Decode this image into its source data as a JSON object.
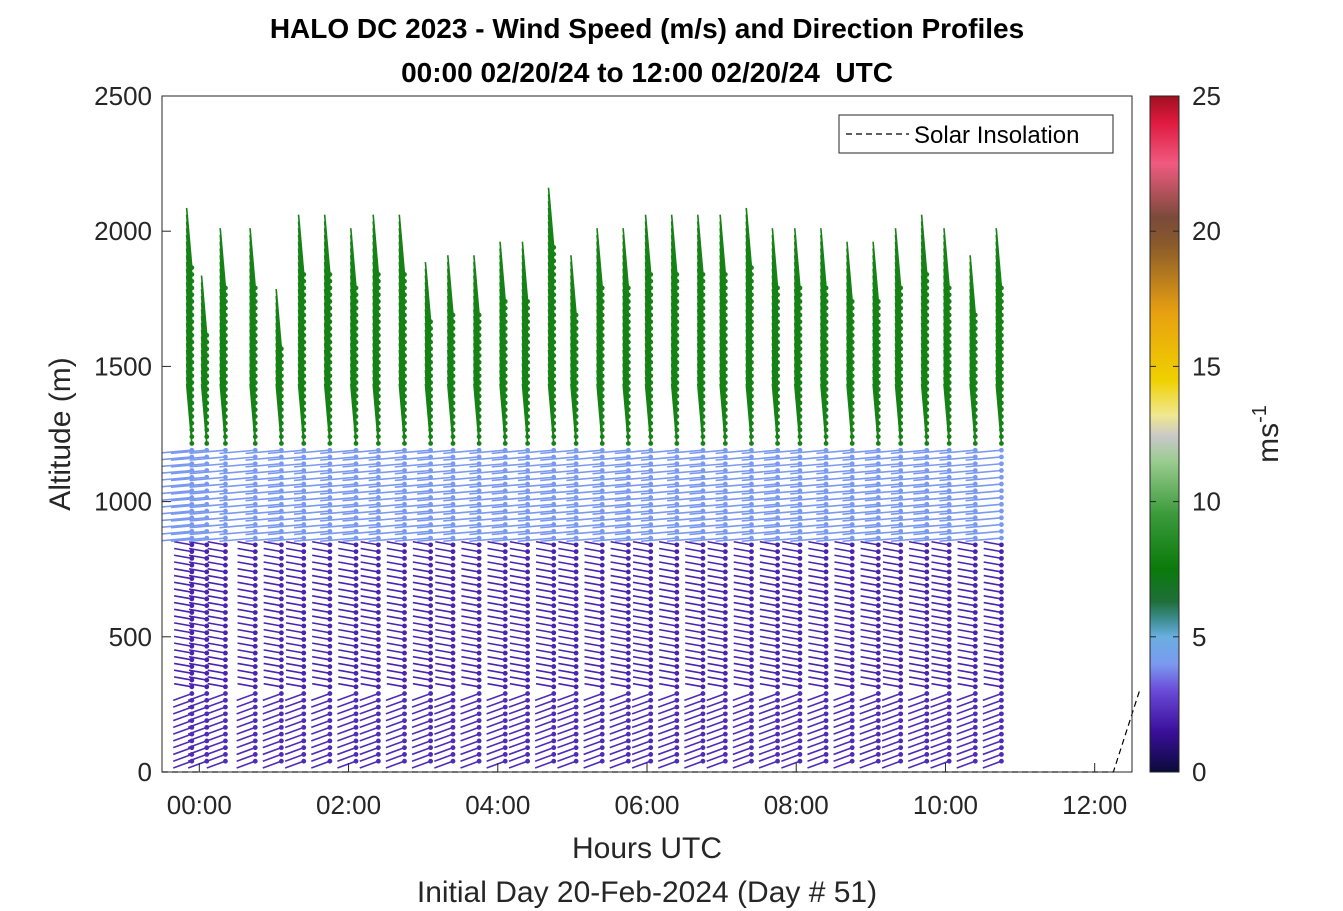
{
  "chart_data": {
    "type": "quiver",
    "title": "HALO DC 2023 - Wind Speed (m/s) and Direction Profiles",
    "subtitle": "00:00 02/20/24 to 12:00 02/20/24  UTC",
    "xlabel": "Hours UTC",
    "xlabel2": "Initial Day 20-Feb-2024 (Day # 51)",
    "ylabel": "Altitude (m)",
    "xlim": [
      -0.5,
      12.5
    ],
    "ylim": [
      0,
      2500
    ],
    "xticks": [
      0,
      2,
      4,
      6,
      8,
      10,
      12
    ],
    "xtick_labels": [
      "00:00",
      "02:00",
      "04:00",
      "06:00",
      "08:00",
      "10:00",
      "12:00"
    ],
    "yticks": [
      0,
      500,
      1000,
      1500,
      2000,
      2500
    ],
    "ytick_labels": [
      "0",
      "500",
      "1000",
      "1500",
      "2000",
      "2500"
    ],
    "colorbar": {
      "label": "ms",
      "label_exponent": "-1",
      "range": [
        0,
        25
      ],
      "ticks": [
        0,
        5,
        10,
        15,
        20,
        25
      ],
      "tick_labels": [
        "0",
        "5",
        "10",
        "15",
        "20",
        "25"
      ],
      "stops": [
        {
          "v": 0,
          "color": "#0a0a3a"
        },
        {
          "v": 1.5,
          "color": "#3a0f9a"
        },
        {
          "v": 3,
          "color": "#6a4ad8"
        },
        {
          "v": 4,
          "color": "#7a9af0"
        },
        {
          "v": 5,
          "color": "#6aaee0"
        },
        {
          "v": 5.7,
          "color": "#3a8a8a"
        },
        {
          "v": 6.3,
          "color": "#1f6f3a"
        },
        {
          "v": 7.5,
          "color": "#0a7a0a"
        },
        {
          "v": 9.5,
          "color": "#3a9a3a"
        },
        {
          "v": 11.5,
          "color": "#9acc90"
        },
        {
          "v": 12.4,
          "color": "#c8c8c8"
        },
        {
          "v": 13.2,
          "color": "#f0e890"
        },
        {
          "v": 14.5,
          "color": "#f0d000"
        },
        {
          "v": 17,
          "color": "#e8a010"
        },
        {
          "v": 19.5,
          "color": "#8a5a2a"
        },
        {
          "v": 20.5,
          "color": "#7a4a3a"
        },
        {
          "v": 22.5,
          "color": "#f05a80"
        },
        {
          "v": 24,
          "color": "#e01a40"
        },
        {
          "v": 25,
          "color": "#a01020"
        }
      ]
    },
    "legend": {
      "entries": [
        "Solar Insolation"
      ],
      "position": "top-right",
      "style": "dashed"
    },
    "series": [
      {
        "name": "Solar Insolation",
        "type": "line",
        "x": [
          -0.5,
          12.25,
          12.6
        ],
        "y": [
          0,
          0,
          300
        ]
      },
      {
        "type": "wind-profiles",
        "times_h": [
          -0.1,
          0.1,
          0.35,
          0.75,
          1.1,
          1.4,
          1.75,
          2.1,
          2.4,
          2.75,
          3.1,
          3.4,
          3.75,
          4.1,
          4.4,
          4.75,
          5.05,
          5.4,
          5.75,
          6.05,
          6.4,
          6.75,
          7.05,
          7.4,
          7.75,
          8.05,
          8.4,
          8.75,
          9.1,
          9.4,
          9.75,
          10.05,
          10.4,
          10.75
        ],
        "top_altitudes_m": [
          1870,
          1620,
          1790,
          1790,
          1580,
          1840,
          1840,
          1790,
          1840,
          1840,
          1680,
          1710,
          1710,
          1750,
          1760,
          1960,
          1710,
          1790,
          1790,
          1840,
          1840,
          1840,
          1840,
          1870,
          1790,
          1790,
          1790,
          1750,
          1750,
          1790,
          1840,
          1790,
          1710,
          1790
        ],
        "layers": [
          {
            "bottom_m": 0,
            "top_m": 300,
            "speed_ms": 2.2,
            "direction_deg": 250
          },
          {
            "bottom_m": 300,
            "top_m": 850,
            "speed_ms": 2.0,
            "direction_deg": 280
          },
          {
            "bottom_m": 850,
            "top_m": 1200,
            "speed_ms": 4.0,
            "direction_deg": 265
          },
          {
            "bottom_m": 1200,
            "top_m": 2000,
            "speed_ms": 8.0,
            "direction_deg": 355
          }
        ]
      }
    ]
  }
}
